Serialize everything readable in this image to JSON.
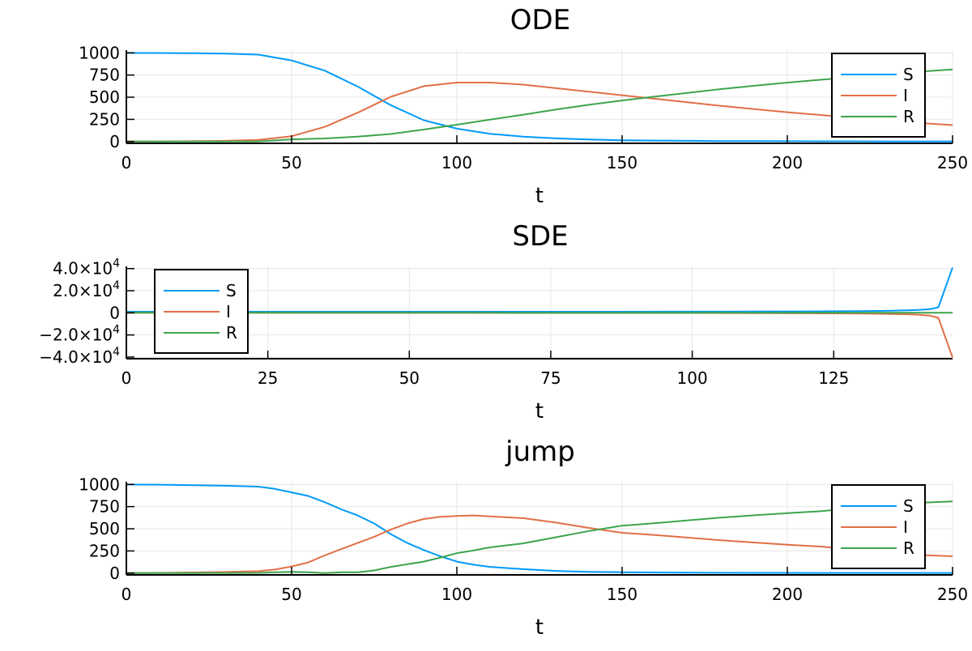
{
  "colors": {
    "S": "#009af9",
    "I": "#e26f46",
    "R": "#3da44d"
  },
  "chart_data": [
    {
      "type": "line",
      "title": "ODE",
      "xlabel": "t",
      "xlim": [
        0,
        250
      ],
      "ylim": [
        -20,
        1030
      ],
      "xticks": [
        0,
        50,
        100,
        150,
        200,
        250
      ],
      "xtick_labels": [
        "0",
        "50",
        "100",
        "150",
        "200",
        "250"
      ],
      "yticks": [
        0,
        250,
        500,
        750,
        1000
      ],
      "ytick_labels": [
        "0",
        "250",
        "500",
        "750",
        "1000"
      ],
      "grid": true,
      "legend": "top-right",
      "x": [
        0,
        10,
        20,
        30,
        40,
        50,
        60,
        70,
        80,
        90,
        100,
        110,
        120,
        130,
        140,
        150,
        160,
        170,
        180,
        190,
        200,
        210,
        220,
        230,
        240,
        250
      ],
      "series": [
        {
          "name": "S",
          "values": [
            999,
            998,
            996,
            992,
            980,
            915,
            800,
            620,
            410,
            240,
            145,
            88,
            56,
            36,
            23,
            15,
            11,
            8,
            6,
            5,
            4,
            3,
            3,
            2,
            2,
            2
          ]
        },
        {
          "name": "I",
          "values": [
            1,
            2,
            4,
            8,
            18,
            60,
            165,
            325,
            505,
            625,
            665,
            665,
            642,
            602,
            562,
            522,
            482,
            442,
            402,
            366,
            331,
            300,
            270,
            240,
            210,
            185
          ]
        },
        {
          "name": "R",
          "values": [
            0,
            0,
            0,
            0,
            2,
            25,
            35,
            55,
            85,
            135,
            190,
            247,
            302,
            362,
            415,
            463,
            507,
            550,
            592,
            629,
            665,
            697,
            727,
            758,
            788,
            813
          ]
        }
      ]
    },
    {
      "type": "line",
      "title": "SDE",
      "xlabel": "t",
      "xlim": [
        0,
        146
      ],
      "ylim": [
        -41500,
        42000
      ],
      "xticks": [
        0,
        25,
        50,
        75,
        100,
        125
      ],
      "xtick_labels": [
        "0",
        "25",
        "50",
        "75",
        "100",
        "125"
      ],
      "yticks": [
        -40000,
        -20000,
        0,
        20000,
        40000
      ],
      "ytick_labels": [
        [
          "−4.0×10",
          "4"
        ],
        [
          "−2.0×10",
          "4"
        ],
        [
          "0",
          ""
        ],
        [
          "2.0×10",
          "4"
        ],
        [
          "4.0×10",
          "4"
        ]
      ],
      "grid": true,
      "legend": "top-left",
      "x": [
        0,
        20,
        40,
        60,
        80,
        100,
        110,
        120,
        125,
        130,
        135,
        138,
        140,
        142,
        143.5,
        146
      ],
      "series": [
        {
          "name": "S",
          "values": [
            1000,
            1000,
            1000,
            1000,
            1000,
            1050,
            1150,
            1300,
            1400,
            1600,
            1900,
            2200,
            2600,
            3300,
            5000,
            41000
          ]
        },
        {
          "name": "I",
          "values": [
            0,
            0,
            -20,
            -50,
            -80,
            -150,
            -250,
            -400,
            -500,
            -700,
            -1000,
            -1300,
            -1800,
            -2500,
            -4500,
            -40500
          ]
        },
        {
          "name": "R",
          "values": [
            0,
            0,
            0,
            5,
            10,
            20,
            30,
            50,
            60,
            70,
            80,
            90,
            100,
            110,
            120,
            130
          ]
        }
      ]
    },
    {
      "type": "line",
      "title": "jump",
      "xlabel": "t",
      "xlim": [
        0,
        250
      ],
      "ylim": [
        -20,
        1030
      ],
      "xticks": [
        0,
        50,
        100,
        150,
        200,
        250
      ],
      "xtick_labels": [
        "0",
        "50",
        "100",
        "150",
        "200",
        "250"
      ],
      "yticks": [
        0,
        250,
        500,
        750,
        1000
      ],
      "ytick_labels": [
        "0",
        "250",
        "500",
        "750",
        "1000"
      ],
      "grid": true,
      "legend": "top-right",
      "x": [
        0,
        10,
        20,
        30,
        40,
        45,
        50,
        55,
        60,
        65,
        70,
        75,
        80,
        85,
        90,
        95,
        100,
        105,
        110,
        120,
        130,
        140,
        150,
        160,
        170,
        180,
        190,
        200,
        210,
        220,
        230,
        240,
        250
      ],
      "series": [
        {
          "name": "S",
          "values": [
            999,
            997,
            992,
            985,
            975,
            950,
            910,
            870,
            800,
            720,
            650,
            560,
            440,
            340,
            260,
            190,
            130,
            95,
            70,
            45,
            25,
            15,
            10,
            7,
            5,
            4,
            3,
            3,
            2,
            2,
            2,
            2,
            2
          ]
        },
        {
          "name": "I",
          "values": [
            1,
            3,
            7,
            13,
            22,
            40,
            75,
            120,
            200,
            270,
            340,
            410,
            490,
            560,
            610,
            635,
            645,
            650,
            640,
            620,
            570,
            510,
            455,
            430,
            400,
            370,
            345,
            320,
            300,
            265,
            230,
            205,
            190
          ]
        },
        {
          "name": "R",
          "values": [
            0,
            0,
            1,
            2,
            3,
            10,
            15,
            10,
            0,
            10,
            10,
            30,
            70,
            100,
            130,
            175,
            225,
            255,
            290,
            335,
            405,
            475,
            535,
            563,
            595,
            626,
            652,
            677,
            698,
            733,
            768,
            793,
            808
          ]
        }
      ]
    }
  ]
}
